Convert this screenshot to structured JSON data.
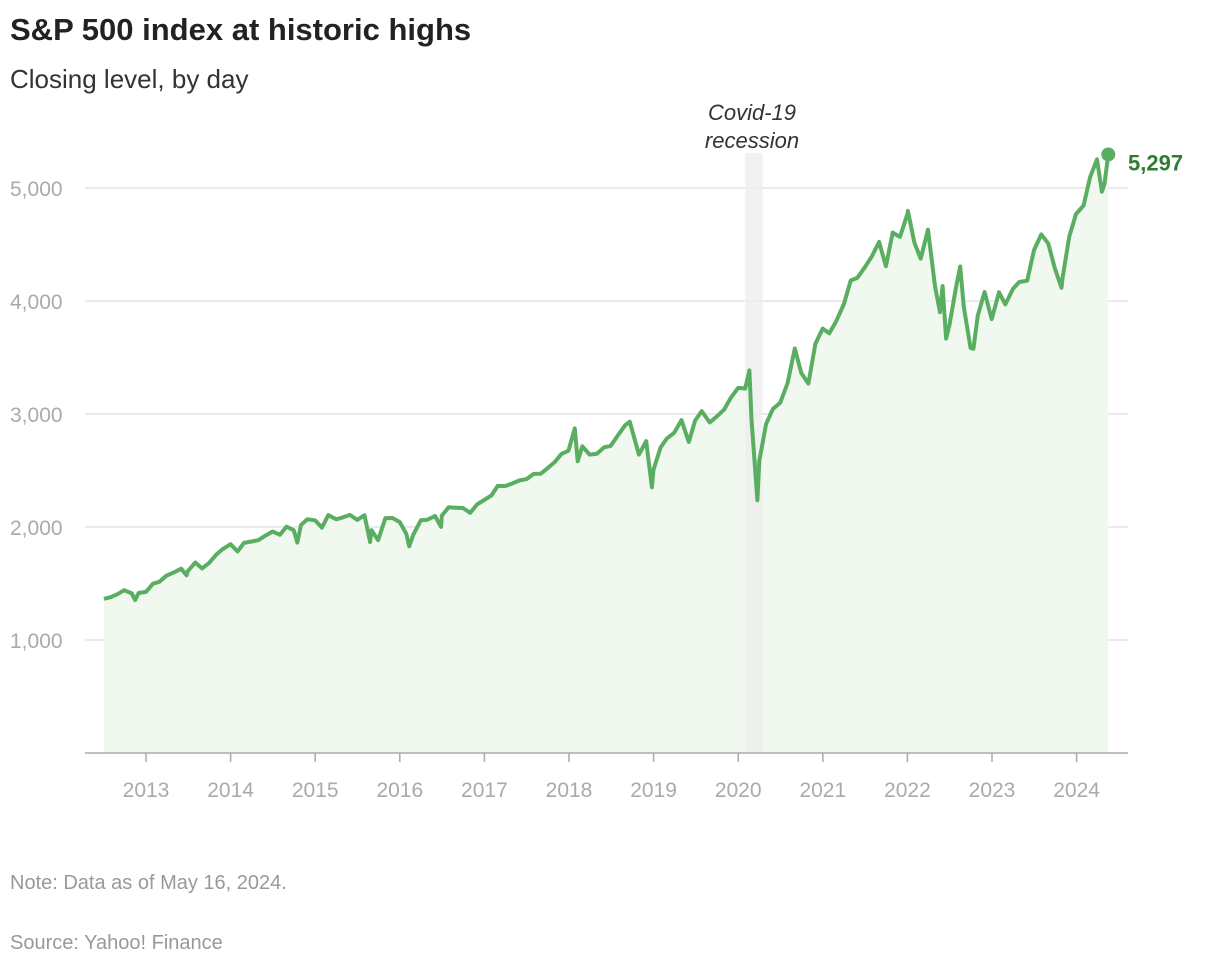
{
  "header": {
    "title": "S&P 500 index at historic highs",
    "subtitle": "Closing level, by day"
  },
  "footer": {
    "note": "Note: Data as of May 16, 2024.",
    "source": "Source: Yahoo! Finance"
  },
  "chart_data": {
    "type": "area",
    "title": "S&P 500 index at historic highs",
    "subtitle": "Closing level, by day",
    "xlabel": "",
    "ylabel": "",
    "ylim": [
      0,
      5350
    ],
    "xlim": [
      "2012-06-01",
      "2024-07-01"
    ],
    "grid": true,
    "y_ticks": [
      1000,
      2000,
      3000,
      4000,
      5000
    ],
    "y_tick_labels": [
      "1,000",
      "2,000",
      "3,000",
      "4,000",
      "5,000"
    ],
    "x_ticks": [
      "2013",
      "2014",
      "2015",
      "2016",
      "2017",
      "2018",
      "2019",
      "2020",
      "2021",
      "2022",
      "2023",
      "2024"
    ],
    "colors": {
      "line": "#5aae61",
      "fill": "#f1f8ef",
      "label": "#2e7d32",
      "band": "#eeeeee"
    },
    "annotations": [
      {
        "type": "band",
        "start": "2020-02-01",
        "end": "2020-04-15",
        "label_lines": [
          "Covid-19",
          "recession"
        ]
      }
    ],
    "end_label": "5,297",
    "series": [
      {
        "points": [
          [
            "2012-07-02",
            1365
          ],
          [
            "2012-07-31",
            1379
          ],
          [
            "2012-08-31",
            1406
          ],
          [
            "2012-09-28",
            1441
          ],
          [
            "2012-10-31",
            1412
          ],
          [
            "2012-11-15",
            1353
          ],
          [
            "2012-11-30",
            1416
          ],
          [
            "2012-12-31",
            1426
          ],
          [
            "2013-01-31",
            1498
          ],
          [
            "2013-02-28",
            1515
          ],
          [
            "2013-03-28",
            1569
          ],
          [
            "2013-04-30",
            1598
          ],
          [
            "2013-05-31",
            1631
          ],
          [
            "2013-06-24",
            1573
          ],
          [
            "2013-06-28",
            1606
          ],
          [
            "2013-07-31",
            1686
          ],
          [
            "2013-08-30",
            1633
          ],
          [
            "2013-09-30",
            1682
          ],
          [
            "2013-10-31",
            1757
          ],
          [
            "2013-11-29",
            1806
          ],
          [
            "2013-12-31",
            1848
          ],
          [
            "2014-01-31",
            1783
          ],
          [
            "2014-02-28",
            1859
          ],
          [
            "2014-03-31",
            1872
          ],
          [
            "2014-04-30",
            1884
          ],
          [
            "2014-05-30",
            1924
          ],
          [
            "2014-06-30",
            1960
          ],
          [
            "2014-07-31",
            1931
          ],
          [
            "2014-08-29",
            2003
          ],
          [
            "2014-09-30",
            1972
          ],
          [
            "2014-10-15",
            1862
          ],
          [
            "2014-10-31",
            2018
          ],
          [
            "2014-11-28",
            2068
          ],
          [
            "2014-12-31",
            2059
          ],
          [
            "2015-01-30",
            1995
          ],
          [
            "2015-02-27",
            2105
          ],
          [
            "2015-03-31",
            2068
          ],
          [
            "2015-04-30",
            2086
          ],
          [
            "2015-05-29",
            2107
          ],
          [
            "2015-06-30",
            2063
          ],
          [
            "2015-07-31",
            2104
          ],
          [
            "2015-08-25",
            1867
          ],
          [
            "2015-08-31",
            1972
          ],
          [
            "2015-09-29",
            1884
          ],
          [
            "2015-10-30",
            2079
          ],
          [
            "2015-11-30",
            2080
          ],
          [
            "2015-12-31",
            2044
          ],
          [
            "2016-01-29",
            1940
          ],
          [
            "2016-02-11",
            1829
          ],
          [
            "2016-02-29",
            1932
          ],
          [
            "2016-03-31",
            2060
          ],
          [
            "2016-04-29",
            2065
          ],
          [
            "2016-05-31",
            2097
          ],
          [
            "2016-06-27",
            2001
          ],
          [
            "2016-06-30",
            2099
          ],
          [
            "2016-07-29",
            2174
          ],
          [
            "2016-08-31",
            2171
          ],
          [
            "2016-09-30",
            2168
          ],
          [
            "2016-10-31",
            2126
          ],
          [
            "2016-11-30",
            2199
          ],
          [
            "2016-12-30",
            2239
          ],
          [
            "2017-01-31",
            2279
          ],
          [
            "2017-02-28",
            2364
          ],
          [
            "2017-03-31",
            2363
          ],
          [
            "2017-04-28",
            2384
          ],
          [
            "2017-05-31",
            2412
          ],
          [
            "2017-06-30",
            2423
          ],
          [
            "2017-07-31",
            2470
          ],
          [
            "2017-08-31",
            2472
          ],
          [
            "2017-09-29",
            2519
          ],
          [
            "2017-10-31",
            2575
          ],
          [
            "2017-11-30",
            2648
          ],
          [
            "2017-12-29",
            2674
          ],
          [
            "2018-01-26",
            2873
          ],
          [
            "2018-02-08",
            2581
          ],
          [
            "2018-02-28",
            2714
          ],
          [
            "2018-03-29",
            2641
          ],
          [
            "2018-04-30",
            2648
          ],
          [
            "2018-05-31",
            2705
          ],
          [
            "2018-06-29",
            2718
          ],
          [
            "2018-07-31",
            2816
          ],
          [
            "2018-08-31",
            2902
          ],
          [
            "2018-09-20",
            2931
          ],
          [
            "2018-10-29",
            2641
          ],
          [
            "2018-11-30",
            2760
          ],
          [
            "2018-12-24",
            2351
          ],
          [
            "2018-12-31",
            2507
          ],
          [
            "2019-01-31",
            2704
          ],
          [
            "2019-02-28",
            2784
          ],
          [
            "2019-03-29",
            2834
          ],
          [
            "2019-04-30",
            2946
          ],
          [
            "2019-05-31",
            2752
          ],
          [
            "2019-06-28",
            2942
          ],
          [
            "2019-07-26",
            3026
          ],
          [
            "2019-08-30",
            2926
          ],
          [
            "2019-09-30",
            2977
          ],
          [
            "2019-10-31",
            3038
          ],
          [
            "2019-11-29",
            3141
          ],
          [
            "2019-12-31",
            3231
          ],
          [
            "2020-01-31",
            3226
          ],
          [
            "2020-02-19",
            3386
          ],
          [
            "2020-02-28",
            2954
          ],
          [
            "2020-03-23",
            2237
          ],
          [
            "2020-03-31",
            2585
          ],
          [
            "2020-04-30",
            2912
          ],
          [
            "2020-05-29",
            3044
          ],
          [
            "2020-06-30",
            3100
          ],
          [
            "2020-07-31",
            3271
          ],
          [
            "2020-09-02",
            3580
          ],
          [
            "2020-09-30",
            3363
          ],
          [
            "2020-10-30",
            3270
          ],
          [
            "2020-11-30",
            3622
          ],
          [
            "2020-12-31",
            3756
          ],
          [
            "2021-01-29",
            3714
          ],
          [
            "2021-02-26",
            3811
          ],
          [
            "2021-03-31",
            3973
          ],
          [
            "2021-04-30",
            4181
          ],
          [
            "2021-05-28",
            4204
          ],
          [
            "2021-06-30",
            4298
          ],
          [
            "2021-07-30",
            4395
          ],
          [
            "2021-08-31",
            4523
          ],
          [
            "2021-09-30",
            4308
          ],
          [
            "2021-10-29",
            4605
          ],
          [
            "2021-11-30",
            4567
          ],
          [
            "2021-12-31",
            4766
          ],
          [
            "2022-01-03",
            4797
          ],
          [
            "2022-01-31",
            4516
          ],
          [
            "2022-02-28",
            4374
          ],
          [
            "2022-03-29",
            4632
          ],
          [
            "2022-04-29",
            4132
          ],
          [
            "2022-05-20",
            3901
          ],
          [
            "2022-05-31",
            4132
          ],
          [
            "2022-06-16",
            3667
          ],
          [
            "2022-06-30",
            3785
          ],
          [
            "2022-07-29",
            4130
          ],
          [
            "2022-08-16",
            4305
          ],
          [
            "2022-08-31",
            3955
          ],
          [
            "2022-09-30",
            3586
          ],
          [
            "2022-10-12",
            3577
          ],
          [
            "2022-10-31",
            3872
          ],
          [
            "2022-11-30",
            4080
          ],
          [
            "2022-12-30",
            3840
          ],
          [
            "2023-01-31",
            4077
          ],
          [
            "2023-02-28",
            3970
          ],
          [
            "2023-03-31",
            4109
          ],
          [
            "2023-04-28",
            4169
          ],
          [
            "2023-05-31",
            4180
          ],
          [
            "2023-06-30",
            4450
          ],
          [
            "2023-07-31",
            4589
          ],
          [
            "2023-08-31",
            4508
          ],
          [
            "2023-09-29",
            4288
          ],
          [
            "2023-10-27",
            4117
          ],
          [
            "2023-10-31",
            4194
          ],
          [
            "2023-11-30",
            4568
          ],
          [
            "2023-12-29",
            4770
          ],
          [
            "2024-01-31",
            4846
          ],
          [
            "2024-02-29",
            5096
          ],
          [
            "2024-03-28",
            5254
          ],
          [
            "2024-04-19",
            4967
          ],
          [
            "2024-04-30",
            5036
          ],
          [
            "2024-05-16",
            5297
          ]
        ]
      }
    ]
  }
}
